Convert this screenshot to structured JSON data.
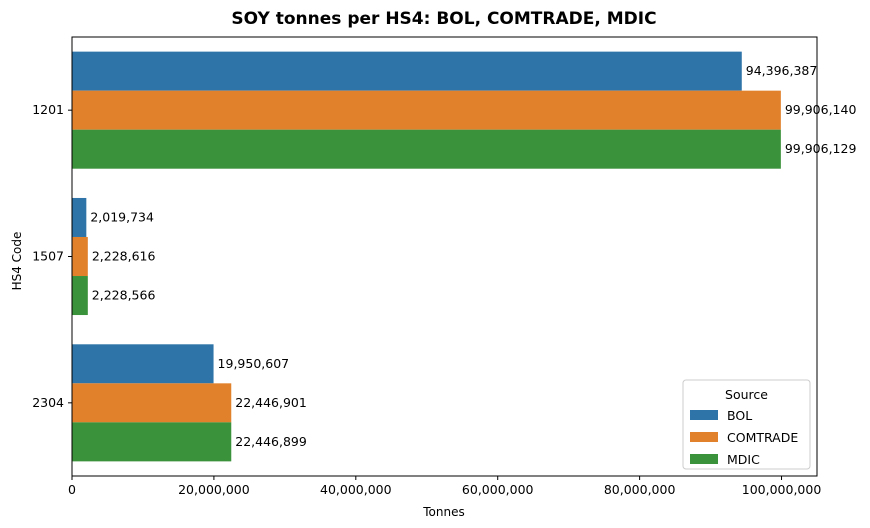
{
  "chart_data": {
    "type": "bar",
    "orientation": "horizontal",
    "title": "SOY tonnes per HS4: BOL, COMTRADE, MDIC",
    "xlabel": "Tonnes",
    "ylabel": "HS4 Code",
    "xlim": [
      0,
      105000000
    ],
    "xticks": [
      0,
      20000000,
      40000000,
      60000000,
      80000000,
      100000000
    ],
    "xtick_labels": [
      "0",
      "20,000,000",
      "40,000,000",
      "60,000,000",
      "80,000,000",
      "100,000,000"
    ],
    "categories": [
      "1201",
      "1507",
      "2304"
    ],
    "series": [
      {
        "name": "BOL",
        "color": "#2e74a8",
        "values": [
          94396387,
          2019734,
          19950607
        ],
        "labels": [
          "94,396,387",
          "2,019,734",
          "19,950,607"
        ]
      },
      {
        "name": "COMTRADE",
        "color": "#e1812c",
        "values": [
          99906140,
          2228616,
          22446901
        ],
        "labels": [
          "99,906,140",
          "2,228,616",
          "22,446,901"
        ]
      },
      {
        "name": "MDIC",
        "color": "#3a923a",
        "values": [
          99906129,
          2228566,
          22446899
        ],
        "labels": [
          "99,906,129",
          "2,228,566",
          "22,446,899"
        ]
      }
    ],
    "legend": {
      "title": "Source",
      "placement": "lower-right"
    },
    "grid": false
  }
}
